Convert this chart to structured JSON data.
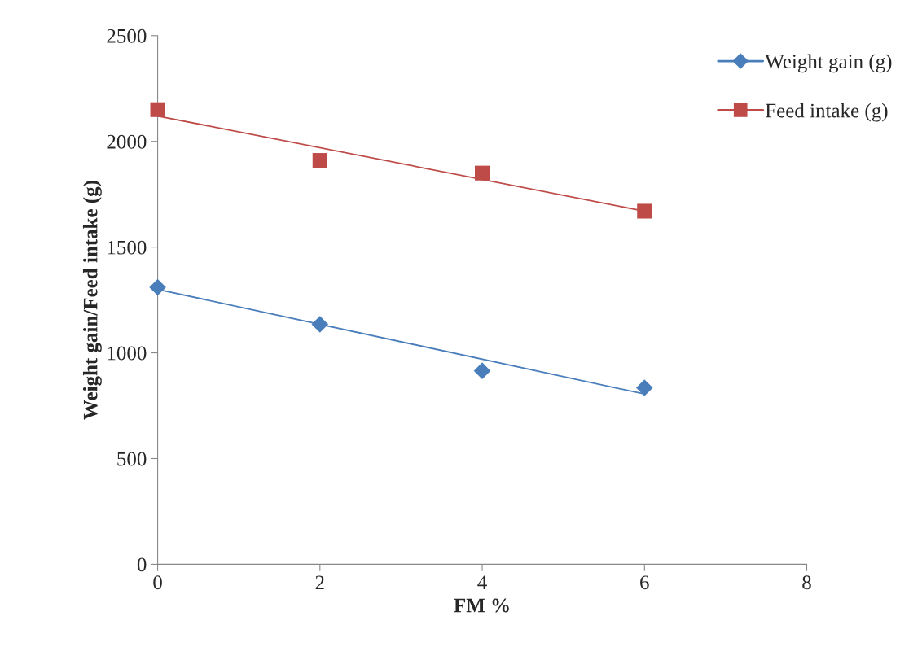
{
  "chart_data": {
    "type": "scatter",
    "xlabel": "FM %",
    "ylabel": "Weight gain/Feed intake (g)",
    "xlim": [
      0,
      8
    ],
    "xticks": [
      0,
      2,
      4,
      6,
      8
    ],
    "ylim": [
      0,
      2500
    ],
    "yticks": [
      0,
      500,
      1000,
      1500,
      2000,
      2500
    ],
    "grid": false,
    "legend": "top right",
    "series": [
      {
        "name": "Weight gain (g)",
        "marker": "diamond",
        "color": "#4a7ebb",
        "x": [
          0,
          2,
          4,
          6
        ],
        "values": [
          1310,
          1135,
          915,
          835
        ]
      },
      {
        "name": "Feed intake (g)",
        "marker": "square",
        "color": "#be4b48",
        "x": [
          0,
          2,
          4,
          6
        ],
        "values": [
          2150,
          1910,
          1850,
          1670
        ]
      },
      {
        "type": "line",
        "marker": "none",
        "color": "#4a7ebb",
        "x": [
          0,
          6
        ],
        "values": [
          1300,
          805
        ]
      },
      {
        "type": "line",
        "marker": "none",
        "color": "#be4b48",
        "x": [
          0,
          6
        ],
        "values": [
          2120,
          1670
        ]
      }
    ]
  }
}
